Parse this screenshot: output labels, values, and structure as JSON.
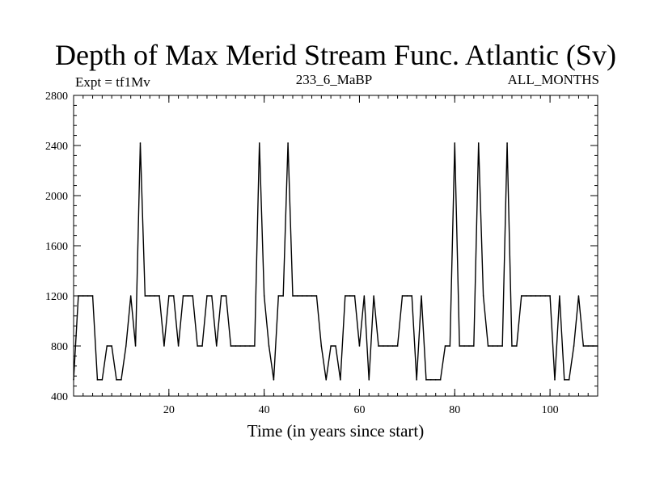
{
  "chart_data": {
    "type": "line",
    "title": "Depth of Max Merid Stream Func. Atlantic (Sv)",
    "subtitle_left": "Expt = tf1Mv",
    "subtitle_center": "233_6_MaBP",
    "subtitle_right": "ALL_MONTHS",
    "xlabel": "Time (in years since start)",
    "ylabel": "",
    "xlim": [
      0,
      110
    ],
    "ylim": [
      400,
      2800
    ],
    "xticks": [
      20,
      40,
      60,
      80,
      100
    ],
    "yticks": [
      400,
      800,
      1200,
      1600,
      2000,
      2400,
      2800
    ],
    "x_minor_step": 2,
    "y_minor_step": 80,
    "grid": false,
    "series": [
      {
        "name": "Depth",
        "x": [
          0,
          1,
          2,
          3,
          4,
          5,
          6,
          7,
          8,
          9,
          10,
          11,
          12,
          13,
          14,
          15,
          16,
          17,
          18,
          19,
          20,
          21,
          22,
          23,
          24,
          25,
          26,
          27,
          28,
          29,
          30,
          31,
          32,
          33,
          34,
          35,
          36,
          37,
          38,
          39,
          40,
          41,
          42,
          43,
          44,
          45,
          46,
          47,
          48,
          49,
          50,
          51,
          52,
          53,
          54,
          55,
          56,
          57,
          58,
          59,
          60,
          61,
          62,
          63,
          64,
          65,
          66,
          67,
          68,
          69,
          70,
          71,
          72,
          73,
          74,
          75,
          76,
          77,
          78,
          79,
          80,
          81,
          82,
          83,
          84,
          85,
          86,
          87,
          88,
          89,
          90,
          91,
          92,
          93,
          94,
          95,
          96,
          97,
          98,
          99,
          100,
          101,
          102,
          103,
          104,
          105,
          106,
          107,
          108,
          109,
          110
        ],
        "values": [
          530,
          1200,
          1200,
          1200,
          1200,
          530,
          530,
          800,
          800,
          530,
          530,
          800,
          1200,
          800,
          2420,
          1200,
          1200,
          1200,
          1200,
          800,
          1200,
          1200,
          800,
          1200,
          1200,
          1200,
          800,
          800,
          1200,
          1200,
          800,
          1200,
          1200,
          800,
          800,
          800,
          800,
          800,
          800,
          2420,
          1200,
          800,
          530,
          1200,
          1200,
          2420,
          1200,
          1200,
          1200,
          1200,
          1200,
          1200,
          800,
          530,
          800,
          800,
          530,
          1200,
          1200,
          1200,
          800,
          1200,
          530,
          1200,
          800,
          800,
          800,
          800,
          800,
          1200,
          1200,
          1200,
          530,
          1200,
          530,
          530,
          530,
          530,
          800,
          800,
          2420,
          800,
          800,
          800,
          800,
          2420,
          1200,
          800,
          800,
          800,
          800,
          2420,
          800,
          800,
          1200,
          1200,
          1200,
          1200,
          1200,
          1200,
          1200,
          530,
          1200,
          530,
          530,
          800,
          1200,
          800,
          800,
          800,
          800
        ]
      }
    ]
  }
}
